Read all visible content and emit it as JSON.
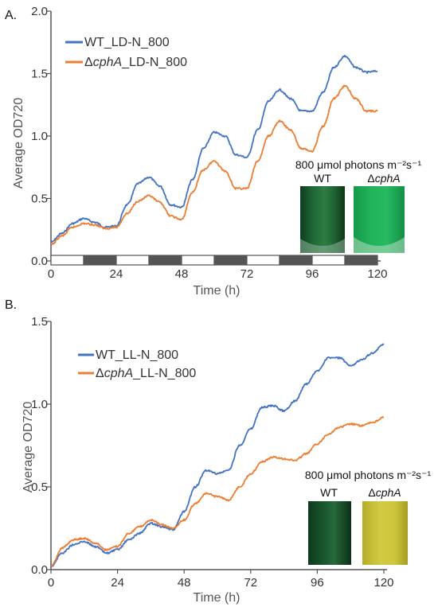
{
  "colors": {
    "wt": "#4472c4",
    "mut": "#ed7d31",
    "axis": "#555555",
    "dark_bar": "#555555"
  },
  "panels": [
    {
      "label": "A.",
      "legend": [
        {
          "prefix": "WT",
          "italic": "",
          "suffix": "_LD-N_800"
        },
        {
          "prefix": "Δ",
          "italic": "cphA",
          "suffix": "_LD-N_800"
        }
      ],
      "inset": {
        "title": "800 μmol photons m⁻²s⁻¹",
        "wt_label": "WT",
        "mut_prefix": "Δ",
        "mut_italic": "cphA"
      },
      "light_dark": {
        "cycle_hours": 24,
        "light_hours": 12,
        "periods": 10
      }
    },
    {
      "label": "B.",
      "legend": [
        {
          "prefix": "WT",
          "italic": "",
          "suffix": "_LL-N_800"
        },
        {
          "prefix": "Δ",
          "italic": "cphA",
          "suffix": "_LL-N_800"
        }
      ],
      "inset": {
        "title": "800 μmol photons m⁻²s⁻¹",
        "wt_label": "WT",
        "mut_prefix": "Δ",
        "mut_italic": "cphA"
      }
    }
  ],
  "chart_data": [
    {
      "type": "line",
      "title": "",
      "xlabel": "Time (h)",
      "ylabel": "Average OD720",
      "xlim": [
        0,
        120
      ],
      "ylim": [
        0,
        2.0
      ],
      "xticks": [
        "0",
        "24",
        "48",
        "72",
        "96",
        "120"
      ],
      "yticks": [
        "0.0",
        "0.5",
        "1.0",
        "1.5",
        "2.0"
      ],
      "legend_position": "top-left",
      "series": [
        {
          "name": "WT_LD-N_800",
          "x": [
            0,
            4,
            8,
            12,
            16,
            20,
            24,
            28,
            32,
            36,
            40,
            44,
            48,
            52,
            56,
            60,
            64,
            68,
            72,
            76,
            80,
            84,
            88,
            92,
            96,
            100,
            104,
            108,
            112,
            116,
            120
          ],
          "y": [
            0.15,
            0.22,
            0.3,
            0.34,
            0.31,
            0.27,
            0.28,
            0.45,
            0.62,
            0.67,
            0.6,
            0.45,
            0.43,
            0.65,
            0.9,
            1.03,
            1.0,
            0.85,
            0.83,
            1.05,
            1.28,
            1.37,
            1.3,
            1.2,
            1.2,
            1.35,
            1.55,
            1.64,
            1.55,
            1.51,
            1.52
          ]
        },
        {
          "name": "ΔcphA_LD-N_800",
          "x": [
            0,
            4,
            8,
            12,
            16,
            20,
            24,
            28,
            32,
            36,
            40,
            44,
            48,
            52,
            56,
            60,
            64,
            68,
            72,
            76,
            80,
            84,
            88,
            92,
            96,
            100,
            104,
            108,
            112,
            116,
            120
          ],
          "y": [
            0.13,
            0.2,
            0.27,
            0.3,
            0.29,
            0.26,
            0.27,
            0.38,
            0.48,
            0.52,
            0.47,
            0.36,
            0.33,
            0.55,
            0.73,
            0.8,
            0.72,
            0.58,
            0.58,
            0.8,
            1.0,
            1.12,
            1.05,
            0.9,
            0.88,
            1.08,
            1.3,
            1.4,
            1.3,
            1.2,
            1.2
          ]
        }
      ]
    },
    {
      "type": "line",
      "title": "",
      "xlabel": "Time (h)",
      "ylabel": "Average OD720",
      "xlim": [
        0,
        120
      ],
      "ylim": [
        0,
        1.5
      ],
      "xticks": [
        "0",
        "24",
        "48",
        "72",
        "96",
        "120"
      ],
      "yticks": [
        "0.0",
        "0.5",
        "1.0",
        "1.5"
      ],
      "legend_position": "top-left",
      "series": [
        {
          "name": "WT_LL-N_800",
          "x": [
            0,
            4,
            8,
            12,
            16,
            20,
            24,
            28,
            32,
            36,
            40,
            44,
            48,
            52,
            56,
            60,
            64,
            68,
            72,
            76,
            80,
            84,
            88,
            92,
            96,
            100,
            104,
            108,
            112,
            116,
            120
          ],
          "y": [
            0.02,
            0.1,
            0.15,
            0.17,
            0.14,
            0.1,
            0.12,
            0.18,
            0.22,
            0.28,
            0.26,
            0.24,
            0.35,
            0.5,
            0.6,
            0.58,
            0.6,
            0.75,
            0.85,
            0.98,
            0.99,
            0.96,
            1.02,
            1.12,
            1.2,
            1.28,
            1.28,
            1.23,
            1.27,
            1.31,
            1.36
          ]
        },
        {
          "name": "ΔcphA_LL-N_800",
          "x": [
            0,
            4,
            8,
            12,
            16,
            20,
            24,
            28,
            32,
            36,
            40,
            44,
            48,
            52,
            56,
            60,
            64,
            68,
            72,
            76,
            80,
            84,
            88,
            92,
            96,
            100,
            104,
            108,
            112,
            116,
            120
          ],
          "y": [
            0.02,
            0.13,
            0.18,
            0.19,
            0.16,
            0.12,
            0.14,
            0.22,
            0.26,
            0.3,
            0.27,
            0.25,
            0.3,
            0.4,
            0.46,
            0.44,
            0.42,
            0.5,
            0.58,
            0.65,
            0.68,
            0.67,
            0.66,
            0.7,
            0.76,
            0.82,
            0.86,
            0.88,
            0.87,
            0.89,
            0.92
          ]
        }
      ]
    }
  ]
}
